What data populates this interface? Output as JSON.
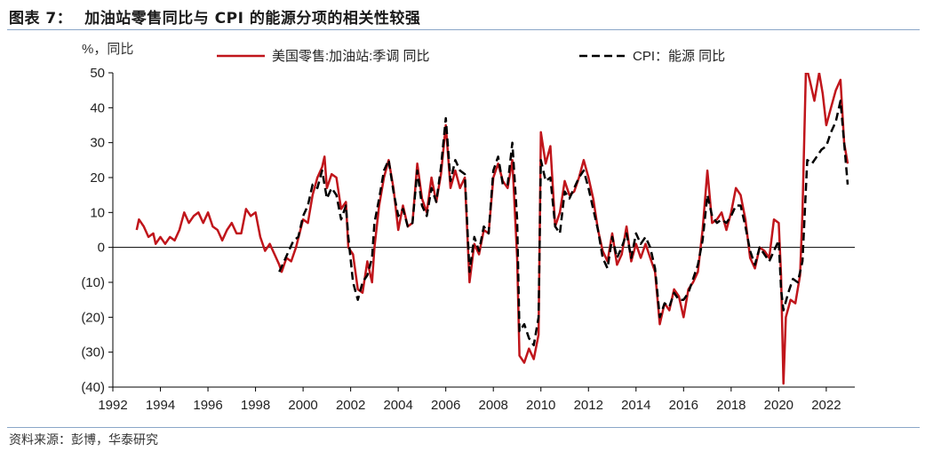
{
  "figure": {
    "number": "图表 7：",
    "title": "加油站零售同比与 CPI 的能源分项的相关性较强",
    "source": "资料来源：彭博，华泰研究"
  },
  "chart_data": {
    "type": "line",
    "ylabel": "%，同比",
    "ylim": [
      -40,
      50
    ],
    "xlim": [
      1992,
      2023.2
    ],
    "yticks": [
      50,
      40,
      30,
      20,
      10,
      0,
      -10,
      -20,
      -30,
      -40
    ],
    "ytick_labels": [
      "50",
      "40",
      "30",
      "20",
      "10",
      "0",
      "(10)",
      "(20)",
      "(30)",
      "(40)"
    ],
    "xticks": [
      1992,
      1994,
      1996,
      1998,
      2000,
      2002,
      2004,
      2006,
      2008,
      2010,
      2012,
      2014,
      2016,
      2018,
      2020,
      2022
    ],
    "xtick_labels": [
      "1992",
      "1994",
      "1996",
      "1998",
      "2000",
      "2002",
      "2004",
      "2006",
      "2008",
      "2010",
      "2012",
      "2014",
      "2016",
      "2018",
      "2020",
      "2022"
    ],
    "series": [
      {
        "name": "美国零售:加油站:季调 同比",
        "color": "#c0151b",
        "style": "solid",
        "points": [
          [
            1993.0,
            5
          ],
          [
            1993.1,
            8
          ],
          [
            1993.3,
            6
          ],
          [
            1993.5,
            3
          ],
          [
            1993.7,
            4
          ],
          [
            1993.8,
            1
          ],
          [
            1994.0,
            3
          ],
          [
            1994.2,
            1
          ],
          [
            1994.4,
            3
          ],
          [
            1994.6,
            2
          ],
          [
            1994.8,
            5
          ],
          [
            1995.0,
            10
          ],
          [
            1995.2,
            7
          ],
          [
            1995.4,
            9
          ],
          [
            1995.6,
            10
          ],
          [
            1995.8,
            7
          ],
          [
            1996.0,
            10
          ],
          [
            1996.2,
            6
          ],
          [
            1996.4,
            5
          ],
          [
            1996.6,
            2
          ],
          [
            1996.8,
            5
          ],
          [
            1997.0,
            7
          ],
          [
            1997.2,
            4
          ],
          [
            1997.4,
            4
          ],
          [
            1997.6,
            11
          ],
          [
            1997.8,
            9
          ],
          [
            1998.0,
            10
          ],
          [
            1998.2,
            3
          ],
          [
            1998.4,
            -1
          ],
          [
            1998.6,
            1
          ],
          [
            1998.8,
            -2
          ],
          [
            1999.0,
            -5
          ],
          [
            1999.1,
            -7
          ],
          [
            1999.3,
            -3
          ],
          [
            1999.5,
            -4
          ],
          [
            1999.7,
            0
          ],
          [
            2000.0,
            8
          ],
          [
            2000.2,
            7
          ],
          [
            2000.4,
            15
          ],
          [
            2000.6,
            20
          ],
          [
            2000.8,
            23
          ],
          [
            2000.9,
            26
          ],
          [
            2001.0,
            17
          ],
          [
            2001.2,
            21
          ],
          [
            2001.4,
            20
          ],
          [
            2001.6,
            11
          ],
          [
            2001.8,
            13
          ],
          [
            2001.9,
            0
          ],
          [
            2002.1,
            -2
          ],
          [
            2002.3,
            -12
          ],
          [
            2002.5,
            -13
          ],
          [
            2002.7,
            -4
          ],
          [
            2002.9,
            -10
          ],
          [
            2003.0,
            0
          ],
          [
            2003.2,
            12
          ],
          [
            2003.4,
            20
          ],
          [
            2003.6,
            25
          ],
          [
            2003.8,
            17
          ],
          [
            2004.0,
            5
          ],
          [
            2004.2,
            12
          ],
          [
            2004.4,
            6
          ],
          [
            2004.6,
            7
          ],
          [
            2004.8,
            24
          ],
          [
            2005.0,
            14
          ],
          [
            2005.2,
            10
          ],
          [
            2005.4,
            20
          ],
          [
            2005.6,
            13
          ],
          [
            2005.8,
            21
          ],
          [
            2006.0,
            35
          ],
          [
            2006.2,
            17
          ],
          [
            2006.4,
            22
          ],
          [
            2006.6,
            17
          ],
          [
            2006.8,
            20
          ],
          [
            2007.0,
            -10
          ],
          [
            2007.2,
            1
          ],
          [
            2007.4,
            -2
          ],
          [
            2007.6,
            5
          ],
          [
            2007.8,
            4
          ],
          [
            2008.0,
            20
          ],
          [
            2008.2,
            24
          ],
          [
            2008.4,
            19
          ],
          [
            2008.6,
            17
          ],
          [
            2008.8,
            25
          ],
          [
            2009.0,
            -3
          ],
          [
            2009.1,
            -31
          ],
          [
            2009.3,
            -33
          ],
          [
            2009.5,
            -29
          ],
          [
            2009.7,
            -32
          ],
          [
            2009.9,
            -25
          ],
          [
            2010.0,
            33
          ],
          [
            2010.2,
            24
          ],
          [
            2010.4,
            29
          ],
          [
            2010.6,
            6
          ],
          [
            2010.8,
            10
          ],
          [
            2011.0,
            19
          ],
          [
            2011.2,
            15
          ],
          [
            2011.4,
            16
          ],
          [
            2011.6,
            20
          ],
          [
            2011.8,
            25
          ],
          [
            2012.0,
            20
          ],
          [
            2012.2,
            14
          ],
          [
            2012.4,
            5
          ],
          [
            2012.6,
            -1
          ],
          [
            2012.8,
            -4
          ],
          [
            2013.0,
            4
          ],
          [
            2013.2,
            -5
          ],
          [
            2013.4,
            -2
          ],
          [
            2013.6,
            6
          ],
          [
            2013.8,
            -4
          ],
          [
            2014.0,
            1
          ],
          [
            2014.2,
            -3
          ],
          [
            2014.4,
            1
          ],
          [
            2014.6,
            -3
          ],
          [
            2014.8,
            -7
          ],
          [
            2015.0,
            -22
          ],
          [
            2015.2,
            -16
          ],
          [
            2015.4,
            -18
          ],
          [
            2015.6,
            -12
          ],
          [
            2015.8,
            -14
          ],
          [
            2016.0,
            -20
          ],
          [
            2016.2,
            -12
          ],
          [
            2016.4,
            -10
          ],
          [
            2016.6,
            -7
          ],
          [
            2016.8,
            5
          ],
          [
            2017.0,
            22
          ],
          [
            2017.2,
            7
          ],
          [
            2017.4,
            8
          ],
          [
            2017.6,
            10
          ],
          [
            2017.8,
            5
          ],
          [
            2018.0,
            10
          ],
          [
            2018.2,
            17
          ],
          [
            2018.4,
            15
          ],
          [
            2018.6,
            8
          ],
          [
            2018.8,
            -3
          ],
          [
            2019.0,
            -6
          ],
          [
            2019.2,
            0
          ],
          [
            2019.4,
            -1
          ],
          [
            2019.6,
            -3
          ],
          [
            2019.8,
            8
          ],
          [
            2020.0,
            7
          ],
          [
            2020.1,
            -8
          ],
          [
            2020.2,
            -39
          ],
          [
            2020.3,
            -20
          ],
          [
            2020.5,
            -15
          ],
          [
            2020.7,
            -16
          ],
          [
            2020.9,
            -8
          ],
          [
            2021.0,
            10
          ],
          [
            2021.15,
            52
          ],
          [
            2021.3,
            48
          ],
          [
            2021.5,
            42
          ],
          [
            2021.7,
            50
          ],
          [
            2021.85,
            44
          ],
          [
            2022.0,
            35
          ],
          [
            2022.2,
            40
          ],
          [
            2022.4,
            45
          ],
          [
            2022.6,
            48
          ],
          [
            2022.75,
            30
          ],
          [
            2022.9,
            24
          ]
        ]
      },
      {
        "name": "CPI：能源 同比",
        "color": "#000000",
        "style": "dashed",
        "points": [
          [
            1999.0,
            -7
          ],
          [
            1999.2,
            -4
          ],
          [
            1999.4,
            -1
          ],
          [
            1999.6,
            2
          ],
          [
            1999.8,
            3
          ],
          [
            2000.0,
            9
          ],
          [
            2000.2,
            12
          ],
          [
            2000.4,
            18
          ],
          [
            2000.6,
            17
          ],
          [
            2000.8,
            22
          ],
          [
            2000.9,
            18
          ],
          [
            2001.0,
            14
          ],
          [
            2001.2,
            17
          ],
          [
            2001.4,
            15
          ],
          [
            2001.6,
            8
          ],
          [
            2001.8,
            12
          ],
          [
            2001.9,
            3
          ],
          [
            2002.1,
            -10
          ],
          [
            2002.3,
            -15
          ],
          [
            2002.5,
            -10
          ],
          [
            2002.7,
            -8
          ],
          [
            2002.9,
            -3
          ],
          [
            2003.0,
            7
          ],
          [
            2003.2,
            14
          ],
          [
            2003.4,
            22
          ],
          [
            2003.6,
            25
          ],
          [
            2003.8,
            16
          ],
          [
            2004.0,
            9
          ],
          [
            2004.2,
            11
          ],
          [
            2004.4,
            6
          ],
          [
            2004.6,
            7
          ],
          [
            2004.8,
            22
          ],
          [
            2005.0,
            12
          ],
          [
            2005.2,
            9
          ],
          [
            2005.4,
            17
          ],
          [
            2005.6,
            13
          ],
          [
            2005.8,
            23
          ],
          [
            2006.0,
            37
          ],
          [
            2006.2,
            19
          ],
          [
            2006.4,
            25
          ],
          [
            2006.6,
            22
          ],
          [
            2006.8,
            21
          ],
          [
            2007.0,
            -7
          ],
          [
            2007.2,
            3
          ],
          [
            2007.4,
            -1
          ],
          [
            2007.6,
            6
          ],
          [
            2007.8,
            4
          ],
          [
            2008.0,
            22
          ],
          [
            2008.2,
            26
          ],
          [
            2008.4,
            18
          ],
          [
            2008.6,
            18
          ],
          [
            2008.8,
            30
          ],
          [
            2009.0,
            8
          ],
          [
            2009.1,
            -24
          ],
          [
            2009.3,
            -22
          ],
          [
            2009.5,
            -26
          ],
          [
            2009.7,
            -28
          ],
          [
            2009.9,
            -20
          ],
          [
            2010.0,
            25
          ],
          [
            2010.2,
            19
          ],
          [
            2010.4,
            20
          ],
          [
            2010.6,
            6
          ],
          [
            2010.8,
            4
          ],
          [
            2011.0,
            16
          ],
          [
            2011.2,
            14
          ],
          [
            2011.4,
            17
          ],
          [
            2011.6,
            20
          ],
          [
            2011.8,
            22
          ],
          [
            2012.0,
            17
          ],
          [
            2012.2,
            11
          ],
          [
            2012.4,
            5
          ],
          [
            2012.6,
            -3
          ],
          [
            2012.8,
            -6
          ],
          [
            2013.0,
            3
          ],
          [
            2013.2,
            -3
          ],
          [
            2013.4,
            0
          ],
          [
            2013.6,
            4
          ],
          [
            2013.8,
            -3
          ],
          [
            2014.0,
            4
          ],
          [
            2014.2,
            1
          ],
          [
            2014.4,
            3
          ],
          [
            2014.6,
            0
          ],
          [
            2014.8,
            -6
          ],
          [
            2015.0,
            -20
          ],
          [
            2015.2,
            -16
          ],
          [
            2015.4,
            -17
          ],
          [
            2015.6,
            -13
          ],
          [
            2015.8,
            -15
          ],
          [
            2016.0,
            -15
          ],
          [
            2016.2,
            -13
          ],
          [
            2016.4,
            -9
          ],
          [
            2016.6,
            -5
          ],
          [
            2016.8,
            2
          ],
          [
            2017.0,
            15
          ],
          [
            2017.2,
            9
          ],
          [
            2017.4,
            7
          ],
          [
            2017.6,
            8
          ],
          [
            2017.8,
            7
          ],
          [
            2018.0,
            9
          ],
          [
            2018.2,
            12
          ],
          [
            2018.4,
            12
          ],
          [
            2018.6,
            6
          ],
          [
            2018.8,
            -1
          ],
          [
            2019.0,
            -5
          ],
          [
            2019.2,
            0
          ],
          [
            2019.4,
            -2
          ],
          [
            2019.6,
            -4
          ],
          [
            2019.8,
            -1
          ],
          [
            2020.0,
            2
          ],
          [
            2020.1,
            -12
          ],
          [
            2020.2,
            -18
          ],
          [
            2020.4,
            -13
          ],
          [
            2020.6,
            -9
          ],
          [
            2020.8,
            -10
          ],
          [
            2021.0,
            -4
          ],
          [
            2021.2,
            25
          ],
          [
            2021.4,
            24
          ],
          [
            2021.6,
            26
          ],
          [
            2021.8,
            28
          ],
          [
            2022.0,
            29
          ],
          [
            2022.2,
            33
          ],
          [
            2022.4,
            36
          ],
          [
            2022.6,
            42
          ],
          [
            2022.75,
            30
          ],
          [
            2022.9,
            18
          ]
        ]
      }
    ]
  }
}
